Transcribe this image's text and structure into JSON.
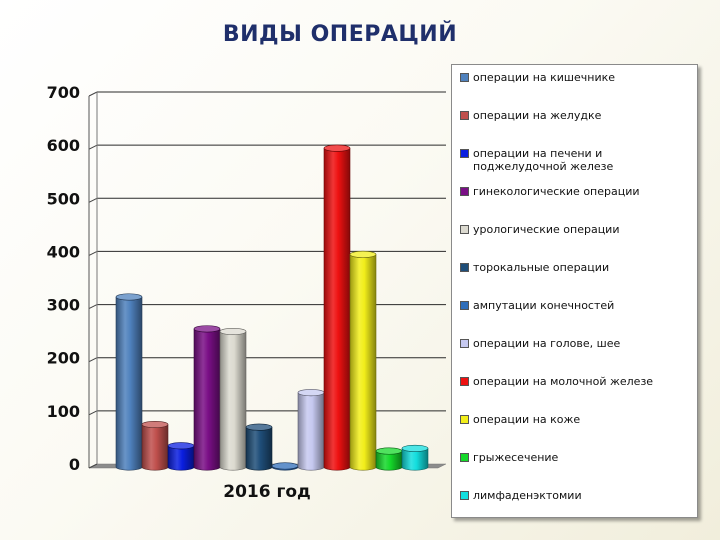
{
  "slide": {
    "title": "ВИДЫ ОПЕРАЦИЙ"
  },
  "chart_data": {
    "type": "bar",
    "categories": [
      "2016 год"
    ],
    "ylim": [
      0,
      700
    ],
    "yticks": [
      0,
      100,
      200,
      300,
      400,
      500,
      600,
      700
    ],
    "grid": true,
    "legend_position": "right",
    "series": [
      {
        "name": "операции на кишечнике",
        "values": [
          320
        ],
        "color": "#4f81bd"
      },
      {
        "name": "операции на желудке",
        "values": [
          80
        ],
        "color": "#c0504d"
      },
      {
        "name": "операции на печени и поджелудочной железе",
        "values": [
          40
        ],
        "color": "#0a1ee0"
      },
      {
        "name": "гинекологические операции",
        "values": [
          260
        ],
        "color": "#7a0f86"
      },
      {
        "name": "урологические операции",
        "values": [
          255
        ],
        "color": "#dcdad0"
      },
      {
        "name": "торокальные операции",
        "values": [
          75
        ],
        "color": "#1f4e79"
      },
      {
        "name": "ампутации конечностей",
        "values": [
          2
        ],
        "color": "#2f6eba"
      },
      {
        "name": "операции на голове, шее",
        "values": [
          140
        ],
        "color": "#c6c9f0"
      },
      {
        "name": "операции на молочной железе",
        "values": [
          600
        ],
        "color": "#ee1111"
      },
      {
        "name": "операции на коже",
        "values": [
          400
        ],
        "color": "#f2ee1a"
      },
      {
        "name": "грыжесечение",
        "values": [
          30
        ],
        "color": "#15d82a"
      },
      {
        "name": "лимфаденэктомии",
        "values": [
          35
        ],
        "color": "#13dede"
      }
    ]
  }
}
